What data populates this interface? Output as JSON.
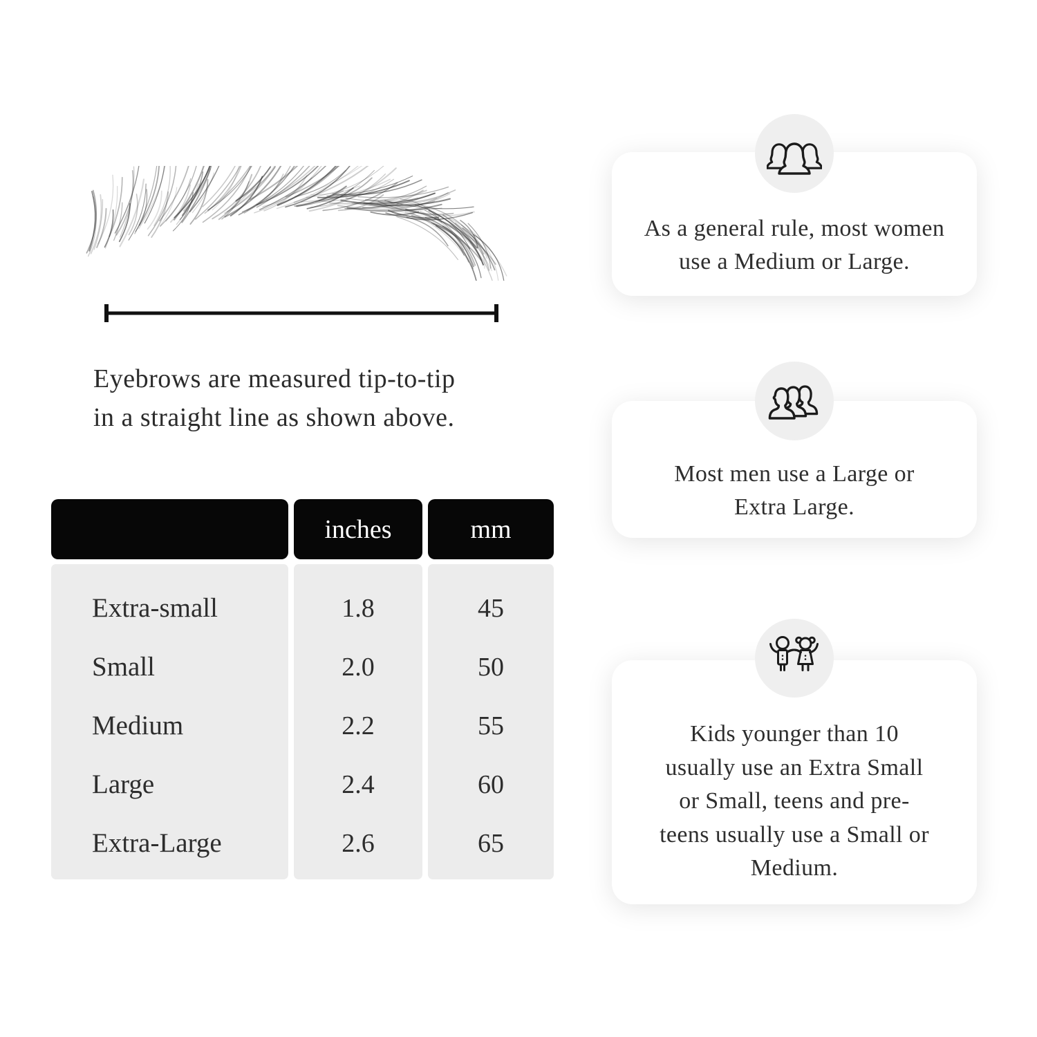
{
  "measurement": {
    "caption_line1": "Eyebrows are measured tip-to-tip",
    "caption_line2": "in a straight line as shown above."
  },
  "size_table": {
    "columns": [
      "",
      "inches",
      "mm"
    ],
    "rows": [
      {
        "label": "Extra-small",
        "inches": "1.8",
        "mm": "45"
      },
      {
        "label": "Small",
        "inches": "2.0",
        "mm": "50"
      },
      {
        "label": "Medium",
        "inches": "2.2",
        "mm": "55"
      },
      {
        "label": "Large",
        "inches": "2.4",
        "mm": "60"
      },
      {
        "label": "Extra-Large",
        "inches": "2.6",
        "mm": "65"
      }
    ]
  },
  "cards": [
    {
      "icon": "women-group-icon",
      "text": "As a general rule, most women use a Medium or Large."
    },
    {
      "icon": "men-group-icon",
      "text": "Most men use a Large or Extra Large."
    },
    {
      "icon": "kids-icon",
      "text": "Kids younger than 10 usually use an Extra Small or Small, teens and pre-teens usually use a Small or Medium."
    }
  ],
  "colors": {
    "page_background": "#ffffff",
    "table_header_background": "#070707",
    "table_header_text": "#ffffff",
    "table_body_background": "#ececec",
    "body_text": "#2b2b2b",
    "icon_circle_background": "#efefef",
    "icon_stroke": "#1b1b1b"
  }
}
